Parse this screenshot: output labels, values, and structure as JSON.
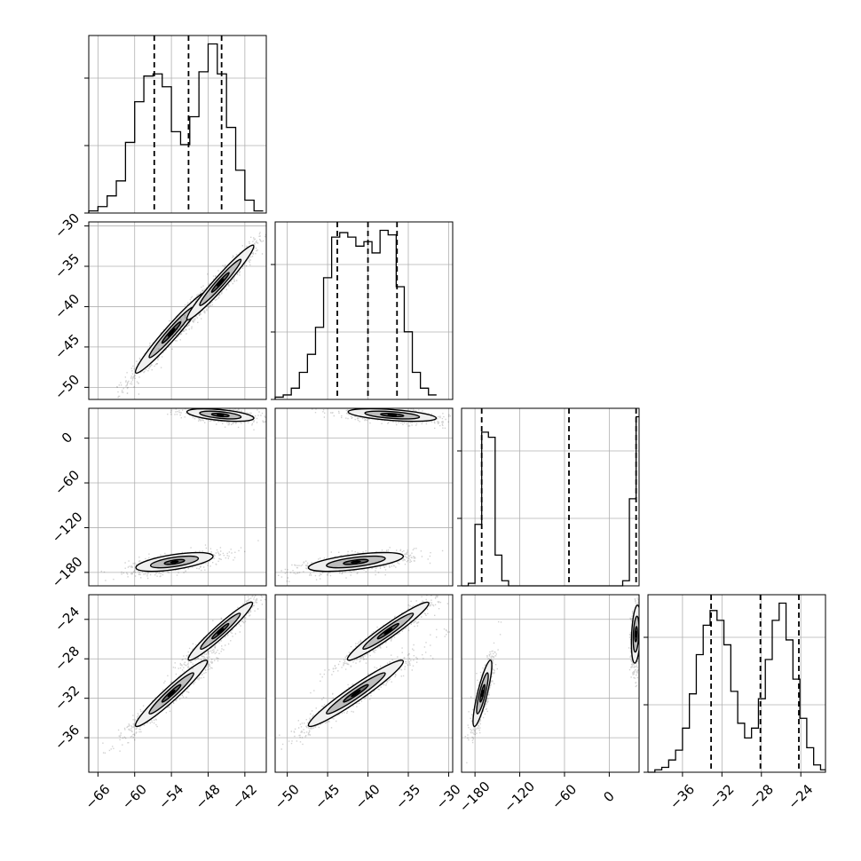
{
  "chart_data": {
    "type": "corner",
    "parameters": [
      {
        "ticks": [
          -66,
          -60,
          -54,
          -48,
          -42
        ],
        "tick_labels": [
          "−66",
          "−60",
          "−54",
          "−48",
          "−42"
        ],
        "range": [
          -67.5,
          -38.5
        ],
        "quantiles": [
          -56.8,
          -51.2,
          -45.8
        ],
        "hist_bins": [
          -67.5,
          -66,
          -64.5,
          -63,
          -61.5,
          -60,
          -58.5,
          -57,
          -55.5,
          -54,
          -52.5,
          -51,
          -49.5,
          -48,
          -46.5,
          -45,
          -43.5,
          -42,
          -40.5,
          -39
        ],
        "hist_counts": [
          1,
          3,
          8,
          15,
          33,
          52,
          64,
          65,
          59,
          38,
          32,
          45,
          66,
          79,
          65,
          40,
          20,
          6,
          1
        ]
      },
      {
        "ticks": [
          -50,
          -45,
          -40,
          -35,
          -30
        ],
        "tick_labels": [
          "−50",
          "−45",
          "−40",
          "−35",
          "−30"
        ],
        "range": [
          -51.5,
          -29.5
        ],
        "quantiles": [
          -43.8,
          -40,
          -36.4
        ],
        "hist_bins": [
          -51.5,
          -50.5,
          -49.5,
          -48.5,
          -47.5,
          -46.5,
          -45.5,
          -44.5,
          -43.5,
          -42.5,
          -41.5,
          -40.5,
          -39.5,
          -38.5,
          -37.5,
          -36.5,
          -35.5,
          -34.5,
          -33.5,
          -32.5,
          -31.5
        ],
        "hist_counts": [
          1,
          2,
          5,
          12,
          20,
          32,
          54,
          72,
          74,
          72,
          68,
          70,
          65,
          75,
          73,
          50,
          30,
          12,
          5,
          2
        ]
      },
      {
        "ticks": [
          -180,
          -120,
          -60,
          0
        ],
        "tick_labels": [
          "−180",
          "−120",
          "−60",
          "0"
        ],
        "range": [
          -198,
          40
        ],
        "quantiles": [
          -171,
          -54,
          36
        ],
        "hist_bins": [
          -198,
          -189,
          -180,
          -171,
          -162,
          -153,
          -144,
          -135,
          -126,
          -117,
          -108,
          -99,
          -90,
          -81,
          -72,
          -63,
          -54,
          -45,
          -36,
          -27,
          -18,
          -9,
          0,
          9,
          18,
          27,
          36,
          40
        ],
        "hist_counts": [
          0,
          1,
          24,
          60,
          58,
          12,
          2,
          0,
          0,
          0,
          0,
          0,
          0,
          0,
          0,
          0,
          0,
          0,
          0,
          0,
          0,
          0,
          0,
          0,
          2,
          34,
          66
        ]
      },
      {
        "ticks": [
          -36,
          -32,
          -28,
          -24
        ],
        "tick_labels": [
          "−36",
          "−32",
          "−28",
          "−24"
        ],
        "range": [
          -39.5,
          -21.5
        ],
        "quantiles": [
          -33.1,
          -28.1,
          -24.2
        ],
        "hist_bins": [
          -39.5,
          -38.8,
          -38.1,
          -37.4,
          -36.7,
          -36,
          -35.3,
          -34.6,
          -33.9,
          -33.2,
          -32.5,
          -31.8,
          -31.1,
          -30.4,
          -29.7,
          -29,
          -28.3,
          -27.6,
          -26.9,
          -26.2,
          -25.5,
          -24.8,
          -24.1,
          -23.4,
          -22.7,
          -22,
          -21.5
        ],
        "hist_counts": [
          0,
          1,
          2,
          5,
          9,
          18,
          32,
          48,
          60,
          66,
          62,
          52,
          33,
          20,
          14,
          18,
          30,
          46,
          62,
          69,
          54,
          38,
          22,
          10,
          3,
          1
        ]
      }
    ],
    "hist_y_ticks": [
      0,
      0.38,
      0.76
    ],
    "pairs": [
      {
        "row": 1,
        "col": 0,
        "clusters": [
          {
            "center": [
              -54,
              -43.2
            ],
            "sd": [
              2.8,
              2.4
            ],
            "corr": 0.97,
            "n": 900
          },
          {
            "center": [
              -46,
              -37
            ],
            "sd": [
              2.6,
              2.2
            ],
            "corr": 0.97,
            "n": 900
          }
        ]
      },
      {
        "row": 2,
        "col": 0,
        "clusters": [
          {
            "center": [
              -53.5,
              -166
            ],
            "sd": [
              3,
              6
            ],
            "corr": 0.6,
            "n": 700
          },
          {
            "center": [
              -46,
              31
            ],
            "sd": [
              2.6,
              4
            ],
            "corr": -0.5,
            "n": 700
          }
        ]
      },
      {
        "row": 2,
        "col": 1,
        "clusters": [
          {
            "center": [
              -41.5,
              -166
            ],
            "sd": [
              2.8,
              6
            ],
            "corr": 0.6,
            "n": 700
          },
          {
            "center": [
              -37,
              31
            ],
            "sd": [
              2.6,
              4
            ],
            "corr": -0.5,
            "n": 700
          }
        ]
      },
      {
        "row": 3,
        "col": 0,
        "clusters": [
          {
            "center": [
              -54,
              -31.5
            ],
            "sd": [
              2.8,
              1.6
            ],
            "corr": 0.96,
            "n": 800
          },
          {
            "center": [
              -46,
              -25.2
            ],
            "sd": [
              2.5,
              1.4
            ],
            "corr": 0.96,
            "n": 800
          }
        ]
      },
      {
        "row": 3,
        "col": 1,
        "clusters": [
          {
            "center": [
              -41.5,
              -31.5
            ],
            "sd": [
              2.8,
              1.6
            ],
            "corr": 0.96,
            "n": 800
          },
          {
            "center": [
              -37.5,
              -25.2
            ],
            "sd": [
              2.4,
              1.4
            ],
            "corr": 0.96,
            "n": 800
          }
        ]
      },
      {
        "row": 3,
        "col": 2,
        "clusters": [
          {
            "center": [
              -170,
              -31.5
            ],
            "sd": [
              6,
              1.6
            ],
            "corr": 0.85,
            "n": 700
          },
          {
            "center": [
              36,
              -25.5
            ],
            "sd": [
              3,
              1.4
            ],
            "corr": 0.3,
            "n": 700
          }
        ]
      }
    ]
  }
}
